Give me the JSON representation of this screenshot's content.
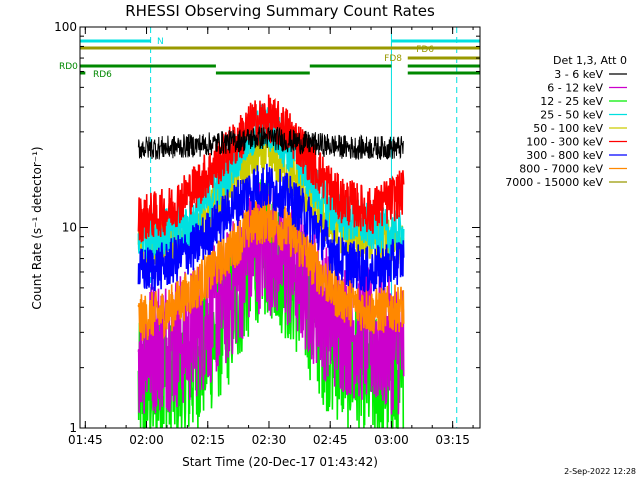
{
  "chart_data": {
    "type": "line",
    "title": "RHESSI Observing Summary Count Rates",
    "xlabel": "Start Time (20-Dec-17 01:43:42)",
    "ylabel": "Count Rate (s⁻¹ detector⁻¹)",
    "yscale": "log",
    "ylim": [
      1,
      100
    ],
    "xlim": [
      "01:43:42",
      "03:21:42"
    ],
    "x_ticks": [
      "01:45",
      "02:00",
      "02:15",
      "02:30",
      "02:45",
      "03:00",
      "03:15"
    ],
    "y_ticks": [
      "1",
      "10",
      "100"
    ],
    "grid": false,
    "legend_position": "right",
    "legend_title": "Det 1,3, Att 0",
    "series": [
      {
        "name": "3 - 6 keV",
        "color": "#000000",
        "x": [
          "01:58",
          "02:05",
          "02:15",
          "02:22",
          "02:27",
          "02:29",
          "02:31",
          "02:35",
          "02:42",
          "02:50",
          "03:00",
          "03:03"
        ],
        "values": [
          25,
          25,
          26,
          27,
          28,
          28,
          28,
          27,
          26,
          25,
          25,
          25
        ]
      },
      {
        "name": "6 - 12 keV",
        "color": "#cc00cc",
        "x": [
          "01:58",
          "02:10",
          "02:20",
          "02:25",
          "02:28",
          "02:31",
          "02:37",
          "02:45",
          "02:55",
          "03:03"
        ],
        "values": [
          2.5,
          2.8,
          4.5,
          7,
          8.5,
          8,
          6,
          3.5,
          2.8,
          2.5
        ]
      },
      {
        "name": "12 - 25 keV",
        "color": "#00ee00",
        "x": [
          "01:58",
          "02:10",
          "02:20",
          "02:25",
          "02:28",
          "02:31",
          "02:37",
          "02:45",
          "02:55",
          "03:03"
        ],
        "values": [
          1.5,
          1.8,
          3.5,
          6,
          8,
          7.5,
          5,
          2.5,
          1.8,
          1.5
        ]
      },
      {
        "name": "25 - 50 keV",
        "color": "#00e0e0",
        "x": [
          "01:58",
          "02:10",
          "02:18",
          "02:24",
          "02:28",
          "02:31",
          "02:37",
          "02:45",
          "02:55",
          "03:03"
        ],
        "values": [
          9,
          10,
          17,
          26,
          32,
          30,
          22,
          12,
          10,
          9
        ]
      },
      {
        "name": "50 - 100 keV",
        "color": "#cccc00",
        "x": [
          "01:58",
          "02:10",
          "02:18",
          "02:24",
          "02:28",
          "02:31",
          "02:37",
          "02:45",
          "02:55",
          "03:03"
        ],
        "values": [
          8,
          9,
          14,
          20,
          23,
          22,
          17,
          10,
          9,
          8
        ]
      },
      {
        "name": "100 - 300 keV",
        "color": "#ff0000",
        "x": [
          "01:58",
          "02:05",
          "02:12",
          "02:20",
          "02:26",
          "02:30",
          "02:35",
          "02:40",
          "02:47",
          "02:55",
          "03:03"
        ],
        "values": [
          11,
          12,
          16,
          24,
          33,
          35,
          30,
          22,
          14,
          12,
          15
        ]
      },
      {
        "name": "300 - 800 keV",
        "color": "#0000ff",
        "x": [
          "01:58",
          "02:05",
          "02:12",
          "02:20",
          "02:26",
          "02:30",
          "02:35",
          "02:40",
          "02:47",
          "02:55",
          "03:03"
        ],
        "values": [
          6,
          6.5,
          8,
          12,
          16,
          16,
          14,
          11,
          7,
          6,
          7
        ]
      },
      {
        "name": "800 - 7000 keV",
        "color": "#ff8800",
        "x": [
          "01:58",
          "02:05",
          "02:12",
          "02:20",
          "02:26",
          "02:30",
          "02:35",
          "02:40",
          "02:47",
          "02:55",
          "03:03"
        ],
        "values": [
          3.5,
          3.8,
          5,
          7.5,
          10.5,
          11,
          9.5,
          7,
          4.5,
          3.8,
          4
        ]
      },
      {
        "name": "7000 - 15000 keV",
        "color": "#999900",
        "x": [],
        "values": []
      }
    ],
    "flags": [
      {
        "label": "N",
        "color": "#00e0e0",
        "intervals": [
          [
            "01:43:42",
            "02:01"
          ],
          [
            "03:00",
            "03:21:42"
          ]
        ]
      },
      {
        "label": "FD6",
        "color": "#999900",
        "intervals": [
          [
            "01:43:42",
            "03:21:42"
          ]
        ]
      },
      {
        "label": "FD8",
        "color": "#999900",
        "intervals": [
          [
            "03:04",
            "03:21:42"
          ]
        ]
      },
      {
        "label": "RD0",
        "color": "#008800",
        "intervals": [
          [
            "01:43:42",
            "02:17"
          ],
          [
            "02:40",
            "03:00"
          ],
          [
            "03:04",
            "03:21:42"
          ]
        ]
      },
      {
        "label": "RD6",
        "color": "#008800",
        "intervals": [
          [
            "01:43:42",
            "01:45"
          ],
          [
            "02:17",
            "02:40"
          ],
          [
            "03:04",
            "03:21:42"
          ]
        ]
      }
    ],
    "vertical_markers": [
      {
        "color": "#00e0e0",
        "style": "solid",
        "x": [
          "01:43:42",
          "03:00"
        ]
      },
      {
        "color": "#00e0e0",
        "style": "dashed",
        "x": [
          "02:01",
          "03:16"
        ]
      }
    ]
  },
  "footer": {
    "date_label": "2-Sep-2022 12:28"
  }
}
